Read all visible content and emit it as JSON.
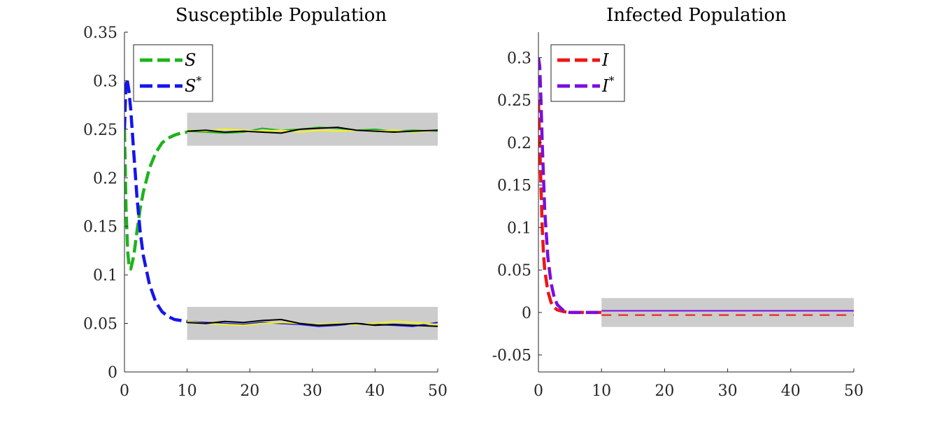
{
  "chart_data": [
    {
      "type": "line",
      "title": "Susceptible Population",
      "xlabel": "",
      "ylabel": "",
      "xlim": [
        0,
        50
      ],
      "ylim": [
        0,
        0.35
      ],
      "xticks": [
        0,
        10,
        20,
        30,
        40,
        50
      ],
      "xtick_labels": [
        "0",
        "10",
        "20",
        "30",
        "40",
        "50"
      ],
      "yticks": [
        0,
        0.05,
        0.1,
        0.15,
        0.2,
        0.25,
        0.3,
        0.35
      ],
      "ytick_labels": [
        "0",
        "0.05",
        "0.1",
        "0.15",
        "0.2",
        "0.25",
        "0.3",
        "0.35"
      ],
      "grid": false,
      "legend_position": "top-left",
      "bands": [
        {
          "x": [
            10,
            50
          ],
          "y": [
            0.233,
            0.267
          ],
          "color": "#cccccc"
        },
        {
          "x": [
            10,
            50
          ],
          "y": [
            0.033,
            0.067
          ],
          "color": "#cccccc"
        }
      ],
      "series": [
        {
          "name": "S",
          "legend": true,
          "color": "#1db31d",
          "style": "dashed",
          "x": [
            0,
            0.25,
            0.5,
            0.75,
            1,
            1.5,
            2,
            2.5,
            3,
            4,
            5,
            6,
            7,
            8,
            9,
            10
          ],
          "y": [
            0.25,
            0.17,
            0.125,
            0.108,
            0.106,
            0.12,
            0.145,
            0.168,
            0.185,
            0.21,
            0.226,
            0.236,
            0.241,
            0.244,
            0.246,
            0.247
          ]
        },
        {
          "name": "S*",
          "legend": true,
          "color": "#1515ee",
          "style": "dashed",
          "x": [
            0,
            0.2,
            0.4,
            0.7,
            1,
            1.5,
            2,
            2.5,
            3,
            4,
            5,
            6,
            7,
            8,
            9,
            10
          ],
          "y": [
            0.25,
            0.29,
            0.302,
            0.29,
            0.27,
            0.225,
            0.18,
            0.145,
            0.12,
            0.09,
            0.072,
            0.062,
            0.057,
            0.054,
            0.053,
            0.052
          ]
        },
        {
          "name": "S stochastic",
          "legend": false,
          "color": "#1db31d",
          "style": "solid",
          "x": [
            10,
            13,
            16,
            19,
            22,
            25,
            28,
            31,
            34,
            37,
            40,
            43,
            46,
            50
          ],
          "y": [
            0.248,
            0.247,
            0.246,
            0.247,
            0.251,
            0.249,
            0.25,
            0.252,
            0.251,
            0.249,
            0.25,
            0.248,
            0.249,
            0.248
          ]
        },
        {
          "name": "S* stochastic",
          "legend": false,
          "color": "#1515ee",
          "style": "solid",
          "x": [
            10,
            13,
            16,
            19,
            22,
            25,
            28,
            31,
            34,
            37,
            40,
            43,
            46,
            50
          ],
          "y": [
            0.052,
            0.051,
            0.05,
            0.049,
            0.051,
            0.05,
            0.049,
            0.047,
            0.048,
            0.05,
            0.049,
            0.048,
            0.047,
            0.051
          ]
        },
        {
          "name": "S sample (yellow)",
          "legend": false,
          "color": "#f5f511",
          "style": "solid",
          "x": [
            10,
            13,
            16,
            19,
            22,
            25,
            28,
            31,
            34,
            37,
            40,
            43,
            46,
            50
          ],
          "y": [
            0.249,
            0.248,
            0.25,
            0.249,
            0.248,
            0.249,
            0.247,
            0.249,
            0.248,
            0.249,
            0.248,
            0.249,
            0.247,
            0.249
          ]
        },
        {
          "name": "S sample (black)",
          "legend": false,
          "color": "#000000",
          "style": "solid",
          "x": [
            10,
            13,
            16,
            19,
            22,
            25,
            28,
            31,
            34,
            37,
            40,
            43,
            46,
            50
          ],
          "y": [
            0.248,
            0.249,
            0.247,
            0.248,
            0.247,
            0.246,
            0.25,
            0.251,
            0.252,
            0.249,
            0.248,
            0.247,
            0.248,
            0.249
          ]
        },
        {
          "name": "S* sample (yellow)",
          "legend": false,
          "color": "#f5f511",
          "style": "solid",
          "x": [
            10,
            13,
            16,
            19,
            22,
            25,
            28,
            31,
            34,
            37,
            40,
            43,
            46,
            50
          ],
          "y": [
            0.052,
            0.05,
            0.049,
            0.048,
            0.05,
            0.051,
            0.05,
            0.049,
            0.05,
            0.049,
            0.05,
            0.052,
            0.051,
            0.049
          ]
        },
        {
          "name": "S* sample (black)",
          "legend": false,
          "color": "#000000",
          "style": "solid",
          "x": [
            10,
            13,
            16,
            19,
            22,
            25,
            28,
            31,
            34,
            37,
            40,
            43,
            46,
            50
          ],
          "y": [
            0.051,
            0.05,
            0.052,
            0.051,
            0.053,
            0.054,
            0.05,
            0.048,
            0.049,
            0.05,
            0.048,
            0.049,
            0.048,
            0.047
          ]
        }
      ],
      "legend": [
        {
          "label": "S",
          "sup": "",
          "color": "#1db31d"
        },
        {
          "label": "S",
          "sup": "*",
          "color": "#1515ee"
        }
      ]
    },
    {
      "type": "line",
      "title": "Infected Population",
      "xlabel": "",
      "ylabel": "",
      "xlim": [
        0,
        50
      ],
      "ylim": [
        -0.07,
        0.33
      ],
      "xticks": [
        0,
        10,
        20,
        30,
        40,
        50
      ],
      "xtick_labels": [
        "0",
        "10",
        "20",
        "30",
        "40",
        "50"
      ],
      "yticks": [
        -0.05,
        0,
        0.05,
        0.1,
        0.15,
        0.2,
        0.25,
        0.3
      ],
      "ytick_labels": [
        "-0.05",
        "0",
        "0.05",
        "0.1",
        "0.15",
        "0.2",
        "0.25",
        "0.3"
      ],
      "grid": false,
      "legend_position": "top-left",
      "bands": [
        {
          "x": [
            10,
            50
          ],
          "y": [
            -0.017,
            0.017
          ],
          "color": "#cccccc"
        }
      ],
      "series": [
        {
          "name": "I",
          "legend": true,
          "color": "#ee1515",
          "style": "dashed",
          "x": [
            0,
            0.2,
            0.4,
            0.6,
            0.8,
            1,
            1.5,
            2,
            2.5,
            3,
            4,
            5,
            6,
            8,
            10
          ],
          "y": [
            0.25,
            0.2,
            0.15,
            0.1,
            0.07,
            0.05,
            0.025,
            0.012,
            0.006,
            0.003,
            0.001,
            0.0,
            0.0,
            0.0,
            0.0
          ]
        },
        {
          "name": "I*",
          "legend": true,
          "color": "#7a0ee0",
          "style": "dashed",
          "x": [
            0,
            0.2,
            0.4,
            0.6,
            0.8,
            1,
            1.5,
            2,
            2.5,
            3,
            4,
            5,
            6,
            8,
            10
          ],
          "y": [
            0.3,
            0.29,
            0.25,
            0.2,
            0.16,
            0.12,
            0.065,
            0.035,
            0.018,
            0.009,
            0.002,
            0.0,
            0.0,
            0.0,
            0.0
          ]
        },
        {
          "name": "I stochastic",
          "legend": false,
          "color": "#ee1515",
          "style": "dashed",
          "x": [
            10,
            50
          ],
          "y": [
            -0.003,
            -0.003
          ]
        },
        {
          "name": "I* stochastic",
          "legend": false,
          "color": "#7a0ee0",
          "style": "solid",
          "x": [
            10,
            50
          ],
          "y": [
            0.002,
            0.002
          ]
        }
      ],
      "legend": [
        {
          "label": "I",
          "sup": "",
          "color": "#ee1515"
        },
        {
          "label": "I",
          "sup": "*",
          "color": "#7a0ee0"
        }
      ]
    }
  ]
}
